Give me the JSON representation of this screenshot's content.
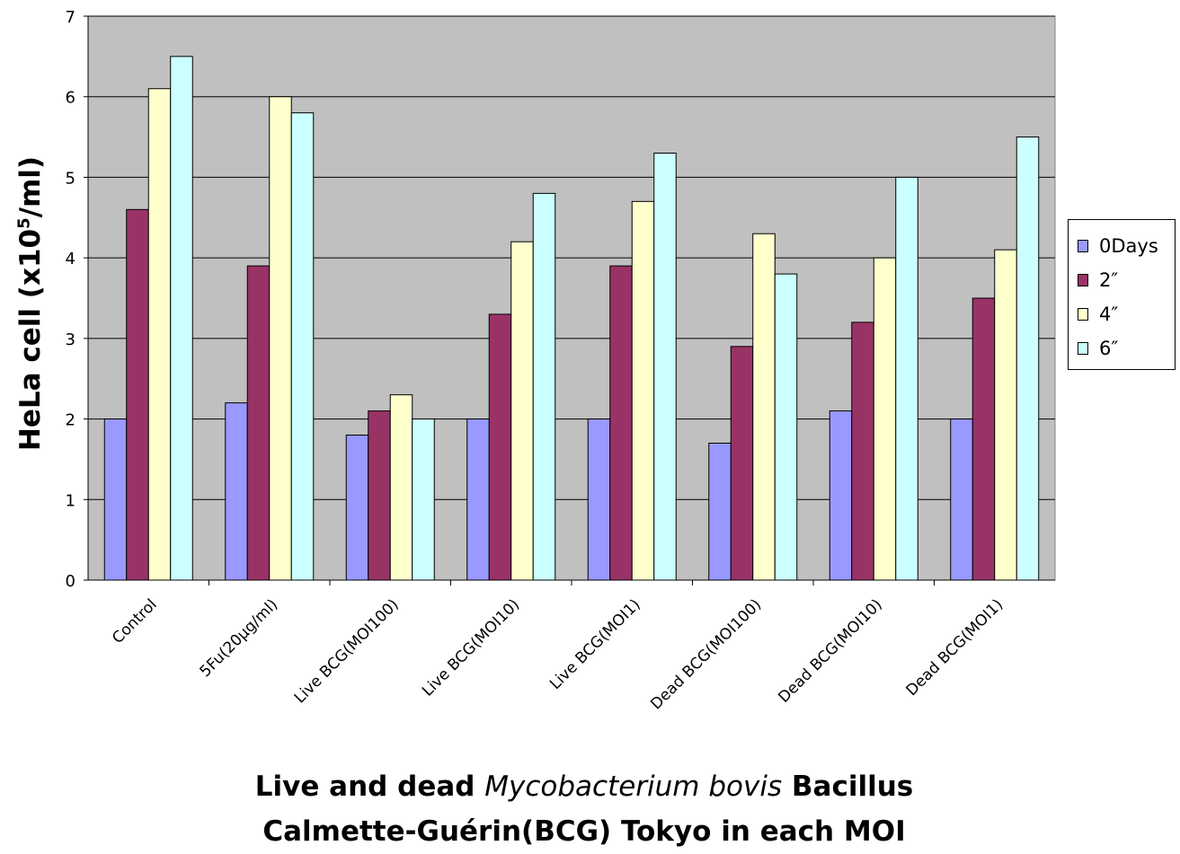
{
  "chart_data": {
    "type": "bar",
    "categories": [
      "Control",
      "5Fu(20μg/ml)",
      "Live BCG(MOI100)",
      "Live BCG(MOI10)",
      "Live BCG(MOI1)",
      "Dead BCG(MOI100)",
      "Dead BCG(MOI10)",
      "Dead BCG(MOI1)"
    ],
    "series": [
      {
        "name": "0Days",
        "color": "#9999ff",
        "values": [
          2.0,
          2.2,
          1.8,
          2.0,
          2.0,
          1.7,
          2.1,
          2.0
        ]
      },
      {
        "name": "2″",
        "color": "#993366",
        "values": [
          4.6,
          3.9,
          2.1,
          3.3,
          3.9,
          2.9,
          3.2,
          3.5
        ]
      },
      {
        "name": "4″",
        "color": "#ffffcc",
        "values": [
          6.1,
          6.0,
          2.3,
          4.2,
          4.7,
          4.3,
          4.0,
          4.1
        ]
      },
      {
        "name": "6″",
        "color": "#ccffff",
        "values": [
          6.5,
          5.8,
          2.0,
          4.8,
          5.3,
          3.8,
          5.0,
          5.5
        ]
      }
    ],
    "ylim": [
      0,
      7
    ],
    "yticks": [
      "0",
      "1",
      "2",
      "3",
      "4",
      "5",
      "6",
      "7"
    ],
    "ylabel": {
      "main": "HeLa cell (x10",
      "sup": "5",
      "tail": "/ml)"
    },
    "xlabel": {
      "line1_pre": "Live and dead ",
      "line1_italic": "Mycobacterium bovis",
      "line1_post": " Bacillus",
      "line2": "Calmette-Guérin(BCG) Tokyo in each MOI"
    },
    "plot_background": "#c0c0c0",
    "grid": true,
    "legend_position": "right"
  }
}
